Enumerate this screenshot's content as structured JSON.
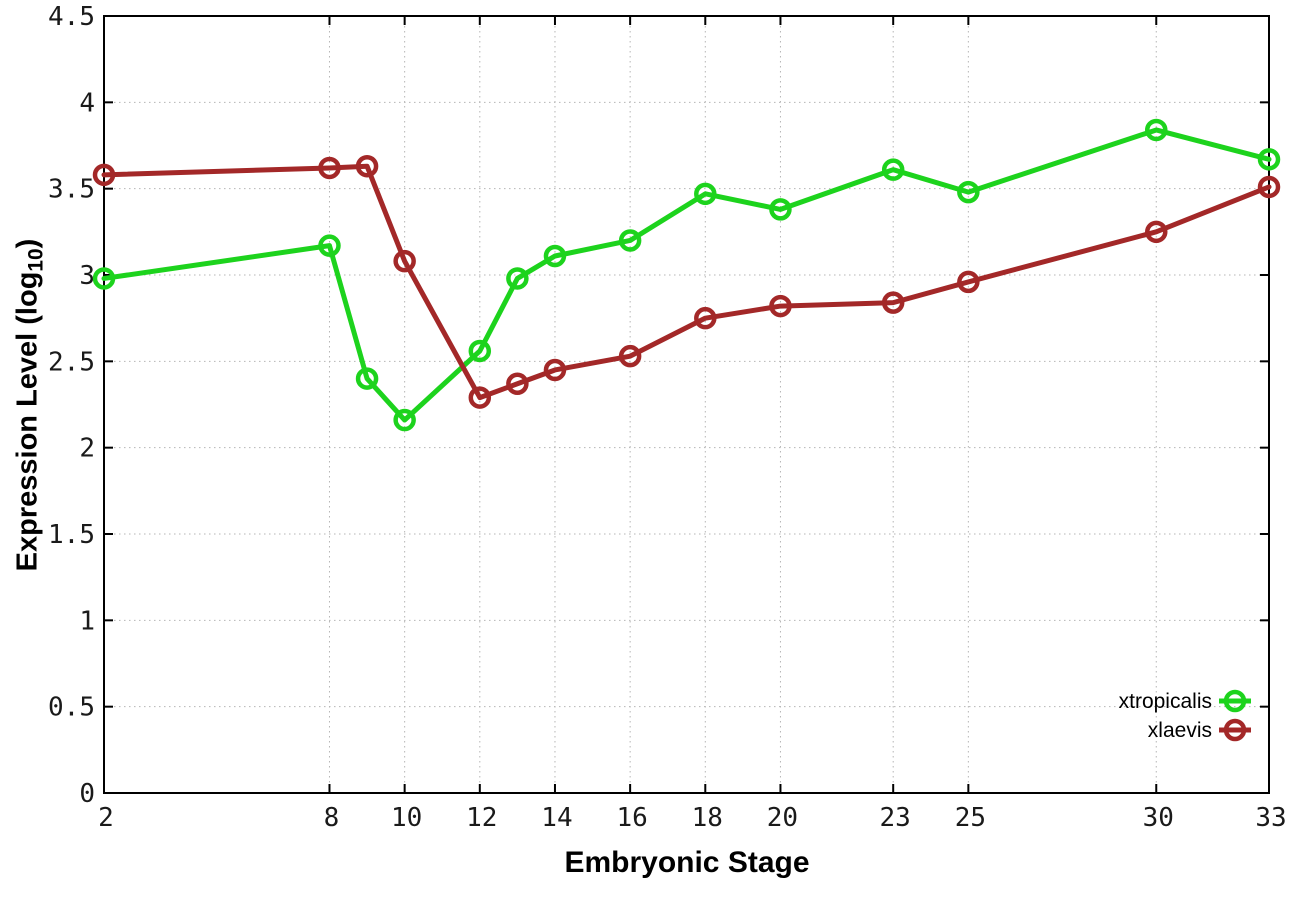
{
  "figure": {
    "x_axis_title": "Embryonic Stage",
    "y_axis_title_prefix": "Expression Level (log",
    "y_axis_title_sub": "10",
    "y_axis_title_suffix": ")"
  },
  "chart_data": {
    "type": "line",
    "title": "",
    "xlabel": "Embryonic Stage",
    "ylabel": "Expression Level (log10)",
    "xlim": [
      2,
      33
    ],
    "ylim": [
      0,
      4.5
    ],
    "grid": true,
    "grid_style": "dotted",
    "legend_position": "bottom-right-inside",
    "background_color": "#ffffff",
    "axis_color": "#000000",
    "grid_color": "#b5b5b5",
    "x_ticks": [
      2,
      8,
      10,
      12,
      14,
      16,
      18,
      20,
      23,
      25,
      30,
      33
    ],
    "y_ticks": [
      0,
      0.5,
      1,
      1.5,
      2,
      2.5,
      3,
      3.5,
      4,
      4.5
    ],
    "x": [
      2,
      8,
      9,
      10,
      12,
      13,
      14,
      16,
      18,
      20,
      23,
      25,
      30,
      33
    ],
    "series": [
      {
        "name": "xtropicalis",
        "color": "#1dd31d",
        "marker": "open-circle",
        "values": [
          2.98,
          3.17,
          2.4,
          2.16,
          2.56,
          2.98,
          3.11,
          3.2,
          3.47,
          3.38,
          3.61,
          3.48,
          3.84,
          3.67
        ]
      },
      {
        "name": "xlaevis",
        "color": "#a32828",
        "marker": "open-circle",
        "values": [
          3.58,
          3.62,
          3.63,
          3.08,
          2.29,
          2.37,
          2.45,
          2.53,
          2.75,
          2.82,
          2.84,
          2.96,
          3.25,
          3.51
        ]
      }
    ]
  }
}
